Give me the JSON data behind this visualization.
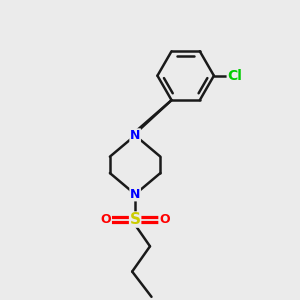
{
  "background_color": "#ebebeb",
  "bond_color": "#1a1a1a",
  "N_color": "#0000ff",
  "S_color": "#cccc00",
  "O_color": "#ff0000",
  "Cl_color": "#00cc00",
  "line_width": 1.8,
  "font_size": 9,
  "figsize": [
    3.0,
    3.0
  ],
  "dpi": 100,
  "xlim": [
    0,
    10
  ],
  "ylim": [
    0,
    10
  ]
}
